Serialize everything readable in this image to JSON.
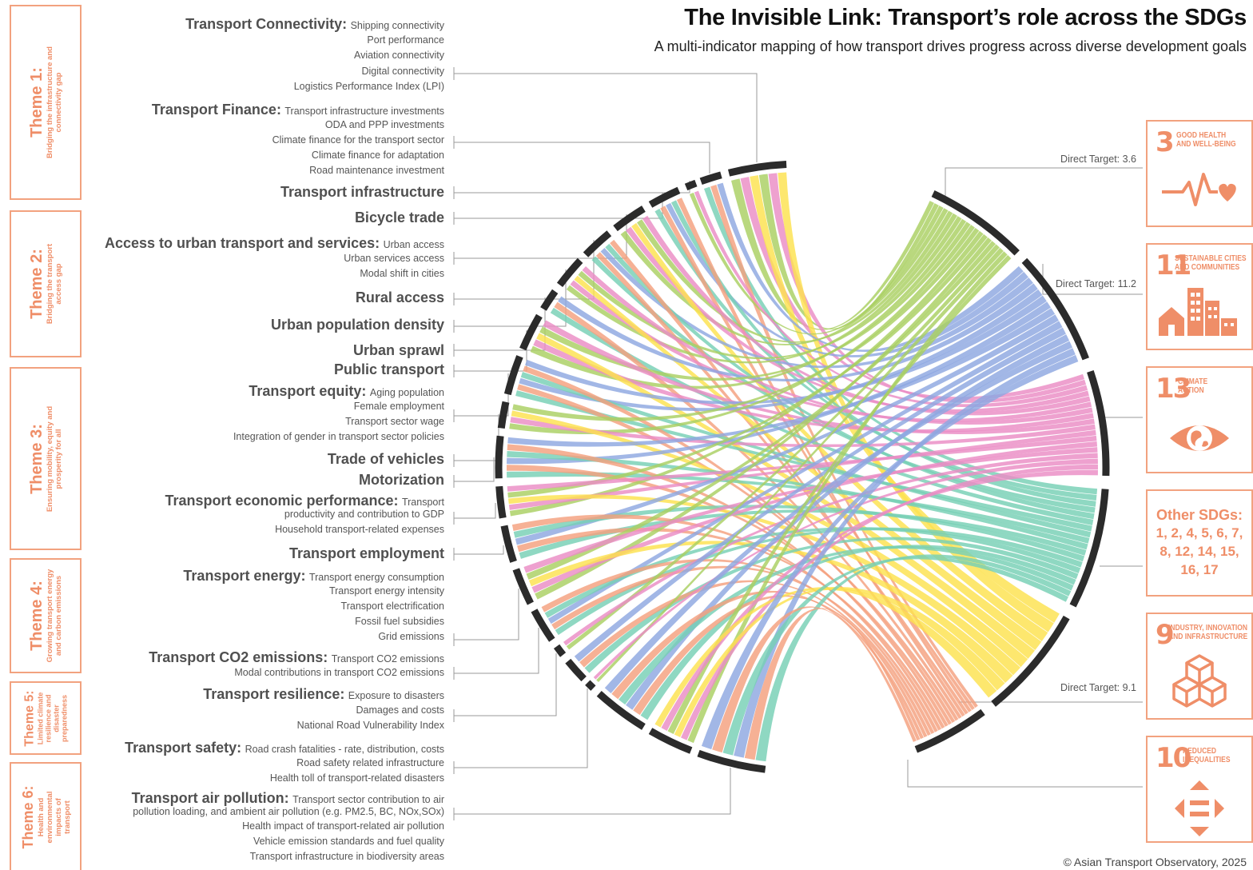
{
  "title": "The Invisible Link: Transport’s role across the SDGs",
  "subtitle": "A multi-indicator mapping of how transport drives progress across diverse development goals",
  "themes": [
    {
      "name": "Theme 1:",
      "desc": "Bridging the infrastructure and connectivity gap"
    },
    {
      "name": "Theme 2:",
      "desc": "Bridging the transport access gap"
    },
    {
      "name": "Theme 3:",
      "desc": "Ensuring mobility, equity and prosperity for all"
    },
    {
      "name": "Theme 4:",
      "desc": "Growing transport energy and carbon emissions"
    },
    {
      "name": "Theme 5:",
      "desc": "Limited climate resilience and disaster preparedness"
    },
    {
      "name": "Theme 6:",
      "desc": "Health and environmental impacts of transport"
    }
  ],
  "indicators": [
    {
      "head": "Transport Connectivity:",
      "inline": "Shipping connectivity",
      "lines": [
        "Port performance",
        "Aviation connectivity",
        "Digital connectivity",
        "Logistics Performance Index (LPI)"
      ]
    },
    {
      "head": "Transport Finance:",
      "inline": "Transport infrastructure investments",
      "lines": [
        "ODA and PPP investments",
        "Climate finance for the transport sector",
        "Climate finance for adaptation",
        "Road maintenance investment"
      ]
    },
    {
      "head": "Transport infrastructure",
      "inline": "",
      "lines": []
    },
    {
      "head": "Bicycle trade",
      "inline": "",
      "lines": []
    },
    {
      "head": "Access to urban transport and services:",
      "inline": "Urban access",
      "lines": [
        "Urban services access",
        "Modal shift in cities"
      ]
    },
    {
      "head": "Rural access",
      "inline": "",
      "lines": []
    },
    {
      "head": "Urban population density",
      "inline": "",
      "lines": []
    },
    {
      "head": "Urban sprawl",
      "inline": "",
      "lines": []
    },
    {
      "head": "Public transport",
      "inline": "",
      "lines": []
    },
    {
      "head": "Transport equity:",
      "inline": "Aging population",
      "lines": [
        "Female employment",
        "Transport sector wage",
        "Integration of gender in transport sector policies"
      ]
    },
    {
      "head": "Trade of vehicles",
      "inline": "",
      "lines": []
    },
    {
      "head": "Motorization",
      "inline": "",
      "lines": []
    },
    {
      "head": "Transport economic performance:",
      "inline": "Transport",
      "lines": [
        "productivity and contribution to GDP",
        "Household transport-related expenses"
      ]
    },
    {
      "head": "Transport employment",
      "inline": "",
      "lines": []
    },
    {
      "head": "Transport energy:",
      "inline": "Transport energy consumption",
      "lines": [
        "Transport energy intensity",
        "Transport electrification",
        "Fossil fuel subsidies",
        "Grid emissions"
      ]
    },
    {
      "head": "Transport CO2 emissions:",
      "inline": "Transport CO2 emissions",
      "lines": [
        "Modal contributions in transport CO2 emissions"
      ]
    },
    {
      "head": "Transport resilience:",
      "inline": "Exposure to disasters",
      "lines": [
        "Damages and costs",
        "National Road Vulnerability Index"
      ]
    },
    {
      "head": "Transport safety:",
      "inline": "Road crash fatalities - rate, distribution, costs",
      "lines": [
        "Road safety related infrastructure",
        "Health toll of transport-related disasters"
      ]
    },
    {
      "head": "Transport air pollution:",
      "inline": "Transport sector contribution to air",
      "lines": [
        "pollution loading, and ambient air pollution (e.g. PM2.5, BC, NOx,SOx)",
        "Health impact of transport-related air pollution",
        "Vehicle emission standards and fuel quality",
        "Transport infrastructure in biodiversity areas"
      ]
    }
  ],
  "sdgs": [
    {
      "num": "3",
      "name_l1": "GOOD HEALTH",
      "name_l2": "AND WELL-BEING",
      "icon": "heartbeat-icon",
      "color": "#a9cf62"
    },
    {
      "num": "11",
      "name_l1": "SUSTAINABLE CITIES",
      "name_l2": "AND COMMUNITIES",
      "icon": "city-icon",
      "color": "#8ea7e0"
    },
    {
      "num": "13",
      "name_l1": "CLIMATE",
      "name_l2": "ACTION",
      "icon": "eye-globe-icon",
      "color": "#ea8cc4"
    },
    {
      "title": "Other SDGs:",
      "list": "1, 2, 4, 5, 6, 7, 8, 12, 14, 15, 16, 17",
      "color": "#76d0b4"
    },
    {
      "num": "9",
      "name_l1": "INDUSTRY, INNOVATION",
      "name_l2": "AND INFRASTRUCTURE",
      "icon": "cubes-icon",
      "color": "#fde24e"
    },
    {
      "num": "10",
      "name_l1": "REDUCED",
      "name_l2": "INEQUALITIES",
      "icon": "arrows-equal-icon",
      "color": "#f4a07e"
    }
  ],
  "direct_targets": [
    "Direct Target: 3.6",
    "Direct Target: 11.2",
    "Direct Target: 9.1"
  ],
  "copyright": "© Asian Transport Observatory, 2025",
  "colors": {
    "accent": "#ef8e68",
    "sdg3": "#a9cf62",
    "sdg11": "#8ea7e0",
    "sdg13": "#ea8cc4",
    "other": "#76d0b4",
    "sdg9": "#fde24e",
    "sdg10": "#f4a07e",
    "arc": "#2b2b2b"
  }
}
